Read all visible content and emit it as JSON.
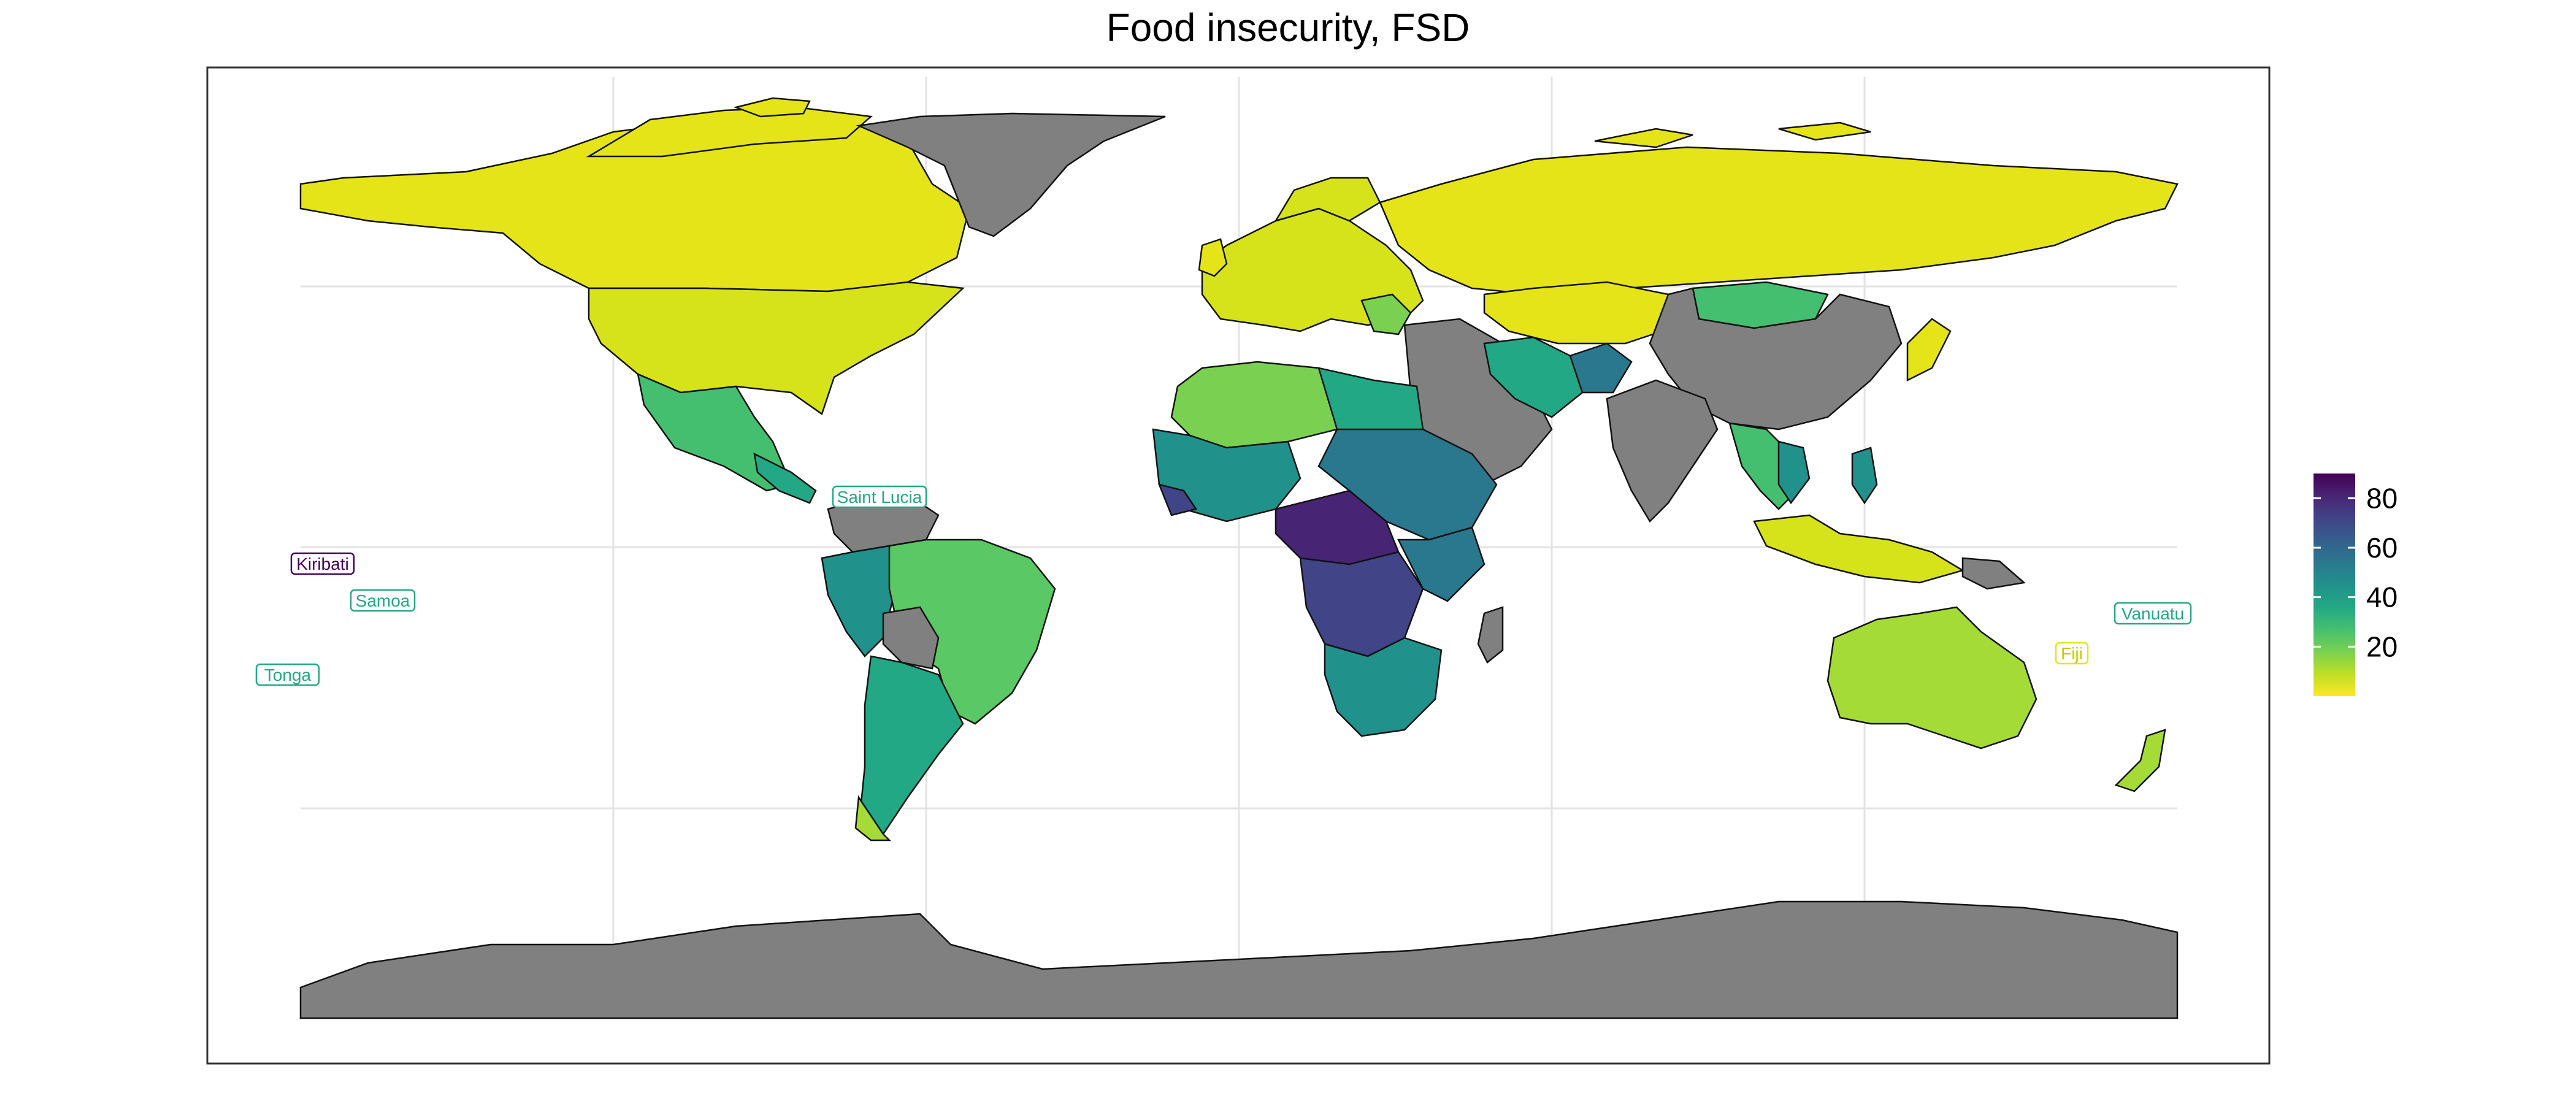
{
  "title": "Food insecurity, FSD",
  "colors": {
    "no_data": "#808080",
    "border": "#111111",
    "background": "#ffffff",
    "grid": "#e3e3e3",
    "scale": [
      "#fde725",
      "#bddf26",
      "#7ad151",
      "#44bf70",
      "#22a884",
      "#21918c",
      "#2a788e",
      "#355f8d",
      "#414487",
      "#482475",
      "#440154"
    ]
  },
  "legend": {
    "min": 0,
    "max": 90,
    "ticks": [
      "20",
      "40",
      "60",
      "80"
    ]
  },
  "labelled_countries": [
    {
      "name": "Saint Lucia",
      "value": 36
    },
    {
      "name": "Kiribati",
      "value": 88
    },
    {
      "name": "Samoa",
      "value": 34
    },
    {
      "name": "Tonga",
      "value": 33
    },
    {
      "name": "Vanuatu",
      "value": 38
    },
    {
      "name": "Fiji",
      "value": 5
    }
  ]
}
